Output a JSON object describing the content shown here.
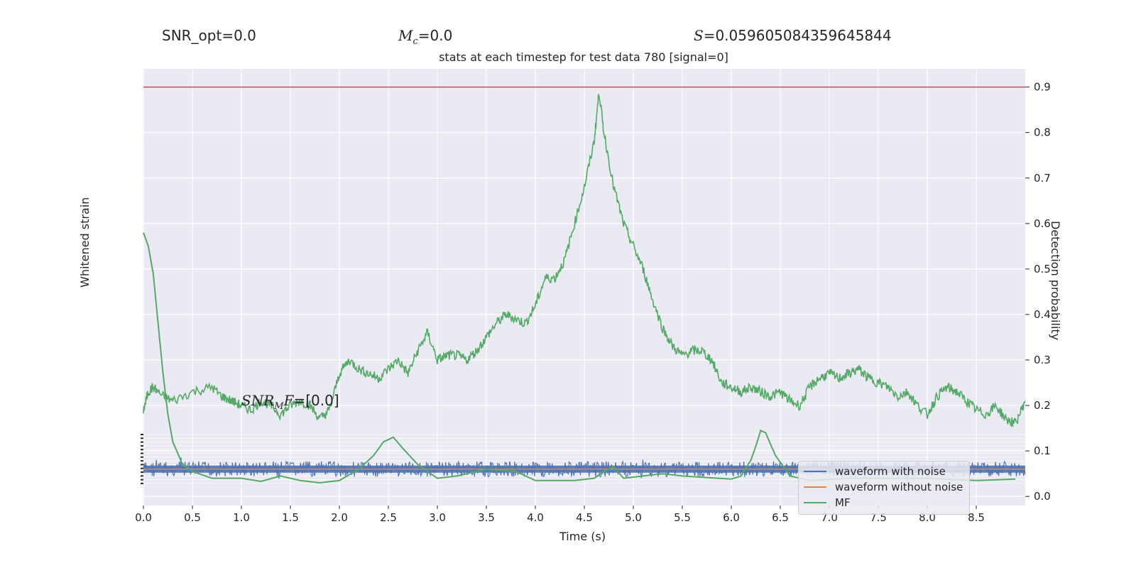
{
  "header": {
    "snr_opt": "SNR_opt=0.0",
    "mc_value": "=0.0",
    "s_value": "=0.059605084359645844",
    "snr_mf_value": "=[0.0]"
  },
  "subtitle": "stats at each timestep for test data 780 [signal=0]",
  "chart_data": {
    "type": "line",
    "title": "stats at each timestep for test data 780 [signal=0]",
    "xlabel": "Time (s)",
    "ylabel_left": "Whitened strain",
    "ylabel_right": "Detection probability",
    "xlim": [
      0,
      9
    ],
    "ylim_right": [
      -0.02,
      0.94
    ],
    "x_ticks": [
      "0.0",
      "0.5",
      "1.0",
      "1.5",
      "2.0",
      "2.5",
      "3.0",
      "3.5",
      "4.0",
      "4.5",
      "5.0",
      "5.5",
      "6.0",
      "6.5",
      "7.0",
      "7.5",
      "8.0",
      "8.5"
    ],
    "y_ticks_right": [
      "0.0",
      "0.1",
      "0.2",
      "0.3",
      "0.4",
      "0.5",
      "0.6",
      "0.7",
      "0.8",
      "0.9"
    ],
    "threshold": 0.9,
    "grid": true,
    "legend_position": "lower-right",
    "legend": [
      "waveform with noise",
      "waveform without noise",
      "MF"
    ],
    "series": [
      {
        "name": "waveform with noise",
        "color": "#4c72b0",
        "description_values": "noise band centred at ~0.06 on right axis scale",
        "amplitude_range": [
          -1.0,
          1.0
        ]
      },
      {
        "name": "waveform without noise",
        "color": "#dd8452",
        "values": "flat zero"
      },
      {
        "name": "MF",
        "color": "#55a868",
        "x": [
          0.0,
          0.05,
          0.1,
          0.15,
          0.2,
          0.25,
          0.3,
          0.4,
          0.5,
          0.7,
          1.0,
          1.2,
          1.4,
          1.6,
          1.8,
          2.0,
          2.2,
          2.35,
          2.45,
          2.55,
          2.65,
          2.8,
          3.0,
          3.2,
          3.5,
          3.8,
          4.0,
          4.2,
          4.4,
          4.6,
          4.7,
          4.8,
          4.9,
          5.1,
          5.3,
          5.5,
          6.0,
          6.1,
          6.2,
          6.25,
          6.3,
          6.35,
          6.45,
          6.6,
          6.8,
          7.2,
          7.6,
          8.0,
          8.5,
          8.9
        ],
        "y": [
          0.58,
          0.55,
          0.49,
          0.38,
          0.27,
          0.18,
          0.12,
          0.07,
          0.055,
          0.04,
          0.04,
          0.033,
          0.045,
          0.035,
          0.03,
          0.035,
          0.06,
          0.09,
          0.12,
          0.13,
          0.105,
          0.07,
          0.04,
          0.045,
          0.06,
          0.055,
          0.035,
          0.035,
          0.035,
          0.04,
          0.055,
          0.065,
          0.04,
          0.045,
          0.05,
          0.045,
          0.038,
          0.045,
          0.08,
          0.11,
          0.145,
          0.14,
          0.09,
          0.045,
          0.035,
          0.04,
          0.04,
          0.04,
          0.035,
          0.038
        ]
      },
      {
        "name": "Detection probability",
        "color": "#55a868",
        "x": [
          0.0,
          0.05,
          0.1,
          0.2,
          0.3,
          0.5,
          0.7,
          0.8,
          0.9,
          1.0,
          1.1,
          1.2,
          1.3,
          1.4,
          1.5,
          1.6,
          1.7,
          1.8,
          1.9,
          2.0,
          2.1,
          2.2,
          2.3,
          2.4,
          2.5,
          2.6,
          2.7,
          2.8,
          2.9,
          3.0,
          3.1,
          3.2,
          3.3,
          3.4,
          3.5,
          3.6,
          3.7,
          3.8,
          3.9,
          4.0,
          4.1,
          4.2,
          4.3,
          4.4,
          4.5,
          4.6,
          4.65,
          4.7,
          4.8,
          4.9,
          5.0,
          5.1,
          5.2,
          5.3,
          5.4,
          5.5,
          5.6,
          5.7,
          5.8,
          5.9,
          6.0,
          6.1,
          6.2,
          6.3,
          6.4,
          6.5,
          6.6,
          6.7,
          6.8,
          6.9,
          7.0,
          7.1,
          7.2,
          7.3,
          7.4,
          7.5,
          7.6,
          7.7,
          7.8,
          7.9,
          8.0,
          8.1,
          8.2,
          8.3,
          8.4,
          8.5,
          8.6,
          8.7,
          8.8,
          8.9,
          9.0
        ],
        "y": [
          0.19,
          0.23,
          0.24,
          0.22,
          0.21,
          0.23,
          0.24,
          0.22,
          0.21,
          0.2,
          0.19,
          0.21,
          0.2,
          0.18,
          0.2,
          0.21,
          0.2,
          0.17,
          0.19,
          0.27,
          0.3,
          0.28,
          0.27,
          0.26,
          0.28,
          0.3,
          0.27,
          0.32,
          0.36,
          0.3,
          0.31,
          0.31,
          0.3,
          0.32,
          0.35,
          0.38,
          0.4,
          0.39,
          0.38,
          0.42,
          0.48,
          0.48,
          0.52,
          0.6,
          0.68,
          0.78,
          0.89,
          0.8,
          0.68,
          0.6,
          0.55,
          0.5,
          0.43,
          0.37,
          0.33,
          0.31,
          0.32,
          0.32,
          0.3,
          0.25,
          0.24,
          0.23,
          0.24,
          0.23,
          0.22,
          0.23,
          0.21,
          0.2,
          0.24,
          0.26,
          0.27,
          0.26,
          0.27,
          0.28,
          0.26,
          0.25,
          0.24,
          0.22,
          0.23,
          0.2,
          0.18,
          0.22,
          0.24,
          0.23,
          0.21,
          0.19,
          0.18,
          0.2,
          0.17,
          0.16,
          0.21
        ]
      }
    ]
  }
}
